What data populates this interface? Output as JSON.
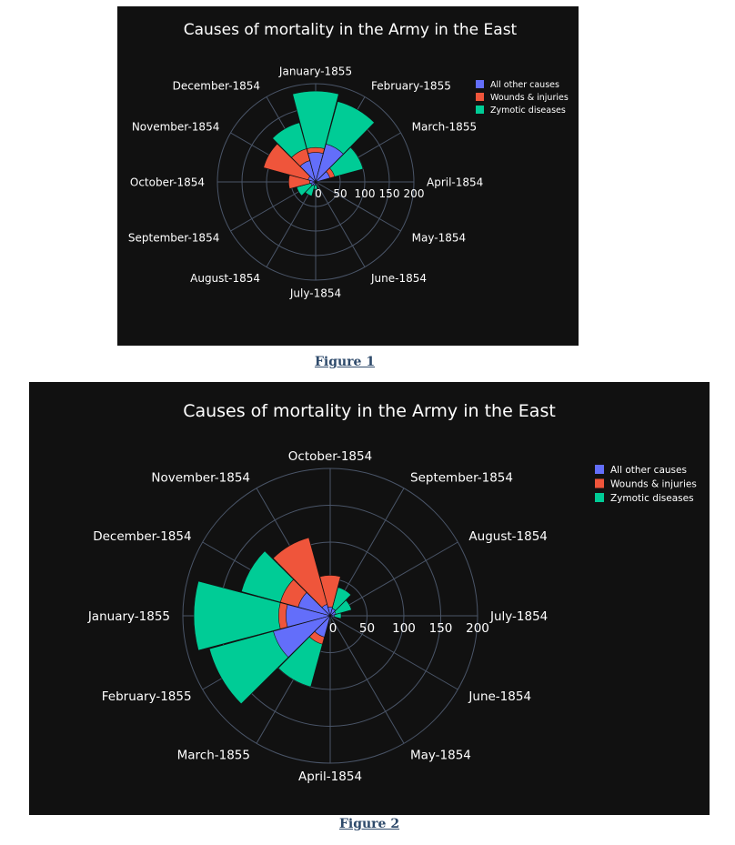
{
  "chart_data": [
    {
      "type": "polar-bar",
      "title": "Causes of mortality in the Army in the East",
      "direction": "clockwise",
      "rotation": "January-1855 at top",
      "radial_axis": {
        "range": [
          0,
          200
        ],
        "tick_labels": [
          "0",
          "50",
          "100",
          "150",
          "200"
        ],
        "tick_values": [
          0,
          50,
          100,
          150,
          200
        ]
      },
      "categories": [
        "April-1854",
        "May-1854",
        "June-1854",
        "July-1854",
        "August-1854",
        "September-1854",
        "October-1854",
        "November-1854",
        "December-1854",
        "January-1855",
        "February-1855",
        "March-1855"
      ],
      "legend": {
        "placement": "top-right"
      },
      "series": [
        {
          "name": "Zymotic diseases",
          "color": "#00cc96",
          "values": [
            2,
            5,
            3,
            15,
            30,
            40,
            42,
            95,
            125,
            185,
            170,
            100
          ]
        },
        {
          "name": "Wounds & injuries",
          "color": "#ef553b",
          "values": [
            0,
            0,
            0,
            1,
            2,
            10,
            55,
            110,
            70,
            70,
            70,
            40
          ]
        },
        {
          "name": "All other causes",
          "color": "#636efa",
          "values": [
            3,
            4,
            3,
            6,
            8,
            10,
            12,
            16,
            45,
            60,
            80,
            30
          ]
        }
      ]
    },
    {
      "type": "polar-bar",
      "title": "Causes of mortality in the Army in the East",
      "direction": "counterclockwise",
      "rotation": "October-1854 at top",
      "radial_axis": {
        "range": [
          0,
          200
        ],
        "tick_labels": [
          "0",
          "50",
          "100",
          "150",
          "200"
        ],
        "tick_values": [
          0,
          50,
          100,
          150,
          200
        ]
      },
      "categories": [
        "April-1854",
        "May-1854",
        "June-1854",
        "July-1854",
        "August-1854",
        "September-1854",
        "October-1854",
        "November-1854",
        "December-1854",
        "January-1855",
        "February-1855",
        "March-1855"
      ],
      "legend": {
        "placement": "top-right"
      },
      "series": [
        {
          "name": "Zymotic diseases",
          "color": "#00cc96",
          "values": [
            2,
            5,
            3,
            15,
            30,
            40,
            42,
            95,
            125,
            185,
            170,
            100
          ]
        },
        {
          "name": "Wounds & injuries",
          "color": "#ef553b",
          "values": [
            0,
            0,
            0,
            1,
            2,
            10,
            55,
            110,
            70,
            70,
            70,
            40
          ]
        },
        {
          "name": "All other causes",
          "color": "#636efa",
          "values": [
            3,
            4,
            3,
            6,
            8,
            10,
            12,
            16,
            45,
            60,
            80,
            30
          ]
        }
      ]
    }
  ],
  "captions": [
    "Figure 1",
    "Figure 2"
  ],
  "theme": {
    "background": "#111111",
    "grid": "#4a5568",
    "text": "#ffffff",
    "caption": "#2e4a6b"
  }
}
